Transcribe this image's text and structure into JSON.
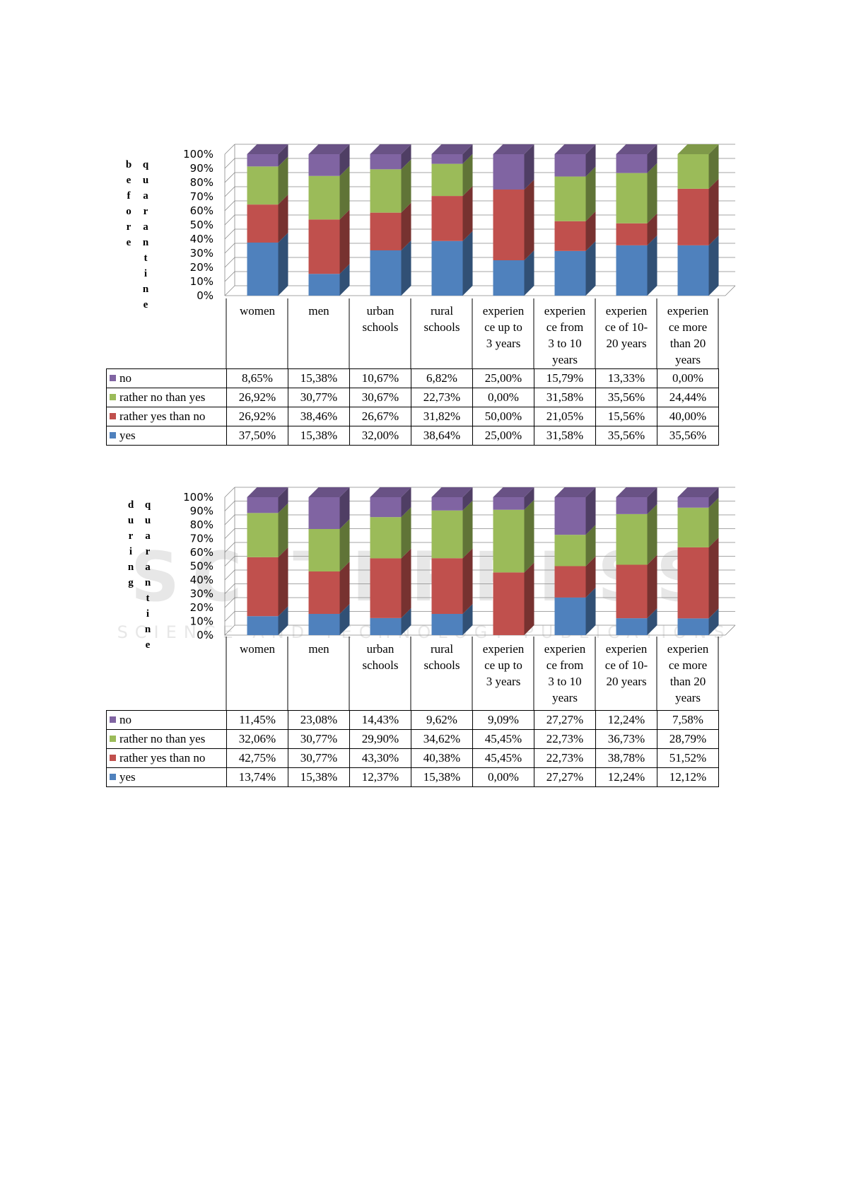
{
  "chart_data": [
    {
      "type": "bar",
      "stacked": true,
      "three_d": true,
      "vertical_label": "before quarantine",
      "y_ticks": [
        "0%",
        "10%",
        "20%",
        "30%",
        "40%",
        "50%",
        "60%",
        "70%",
        "80%",
        "90%",
        "100%"
      ],
      "ylim": [
        0,
        100
      ],
      "categories": [
        "women",
        "men",
        "urban schools",
        "rural schools",
        "experience up to 3 years",
        "experience from 3 to 10 years",
        "experience of 10-20 years",
        "experience more than 20 years"
      ],
      "series": [
        {
          "name": "no",
          "color": "#8064A2",
          "values": [
            8.65,
            15.38,
            10.67,
            6.82,
            25.0,
            15.79,
            13.33,
            0.0
          ],
          "labels": [
            "8,65%",
            "15,38%",
            "10,67%",
            "6,82%",
            "25,00%",
            "15,79%",
            "13,33%",
            "0,00%"
          ]
        },
        {
          "name": "rather no than yes",
          "color": "#9BBB59",
          "values": [
            26.92,
            30.77,
            30.67,
            22.73,
            0.0,
            31.58,
            35.56,
            24.44
          ],
          "labels": [
            "26,92%",
            "30,77%",
            "30,67%",
            "22,73%",
            "0,00%",
            "31,58%",
            "35,56%",
            "24,44%"
          ]
        },
        {
          "name": "rather yes than no",
          "color": "#C0504D",
          "values": [
            26.92,
            38.46,
            26.67,
            31.82,
            50.0,
            21.05,
            15.56,
            40.0
          ],
          "labels": [
            "26,92%",
            "38,46%",
            "26,67%",
            "31,82%",
            "50,00%",
            "21,05%",
            "15,56%",
            "40,00%"
          ]
        },
        {
          "name": "yes",
          "color": "#4F81BD",
          "values": [
            37.5,
            15.38,
            32.0,
            38.64,
            25.0,
            31.58,
            35.56,
            35.56
          ],
          "labels": [
            "37,50%",
            "15,38%",
            "32,00%",
            "38,64%",
            "25,00%",
            "31,58%",
            "35,56%",
            "35,56%"
          ]
        }
      ]
    },
    {
      "type": "bar",
      "stacked": true,
      "three_d": true,
      "vertical_label": "during quarantine",
      "y_ticks": [
        "0%",
        "10%",
        "20%",
        "30%",
        "40%",
        "50%",
        "60%",
        "70%",
        "80%",
        "90%",
        "100%"
      ],
      "ylim": [
        0,
        100
      ],
      "categories": [
        "women",
        "men",
        "urban schools",
        "rural schools",
        "experience up to 3 years",
        "experience from 3 to 10 years",
        "experience of 10-20 years",
        "experience more than 20 years"
      ],
      "series": [
        {
          "name": "no",
          "color": "#8064A2",
          "values": [
            11.45,
            23.08,
            14.43,
            9.62,
            9.09,
            27.27,
            12.24,
            7.58
          ],
          "labels": [
            "11,45%",
            "23,08%",
            "14,43%",
            "9,62%",
            "9,09%",
            "27,27%",
            "12,24%",
            "7,58%"
          ]
        },
        {
          "name": "rather no than yes",
          "color": "#9BBB59",
          "values": [
            32.06,
            30.77,
            29.9,
            34.62,
            45.45,
            22.73,
            36.73,
            28.79
          ],
          "labels": [
            "32,06%",
            "30,77%",
            "29,90%",
            "34,62%",
            "45,45%",
            "22,73%",
            "36,73%",
            "28,79%"
          ]
        },
        {
          "name": "rather yes than no",
          "color": "#C0504D",
          "values": [
            42.75,
            30.77,
            43.3,
            40.38,
            45.45,
            22.73,
            38.78,
            51.52
          ],
          "labels": [
            "42,75%",
            "30,77%",
            "43,30%",
            "40,38%",
            "45,45%",
            "22,73%",
            "38,78%",
            "51,52%"
          ]
        },
        {
          "name": "yes",
          "color": "#4F81BD",
          "values": [
            13.74,
            15.38,
            12.37,
            15.38,
            0.0,
            27.27,
            12.24,
            12.12
          ],
          "labels": [
            "13,74%",
            "15,38%",
            "12,37%",
            "15,38%",
            "0,00%",
            "27,27%",
            "12,24%",
            "12,12%"
          ]
        }
      ]
    }
  ],
  "category_headers": [
    [
      "women"
    ],
    [
      "men"
    ],
    [
      "urban",
      "schools"
    ],
    [
      "rural",
      "schools"
    ],
    [
      "experien",
      "ce up to",
      "3 years"
    ],
    [
      "experien",
      "ce from",
      "3 to 10",
      "years"
    ],
    [
      "experien",
      "ce of 10-",
      "20 years"
    ],
    [
      "experien",
      "ce more",
      "than 20",
      "years"
    ]
  ],
  "watermark": {
    "main": "SCITEPRESS",
    "sub": "SCIENCE AND TECHNOLOGY PUBLICATIONS"
  }
}
